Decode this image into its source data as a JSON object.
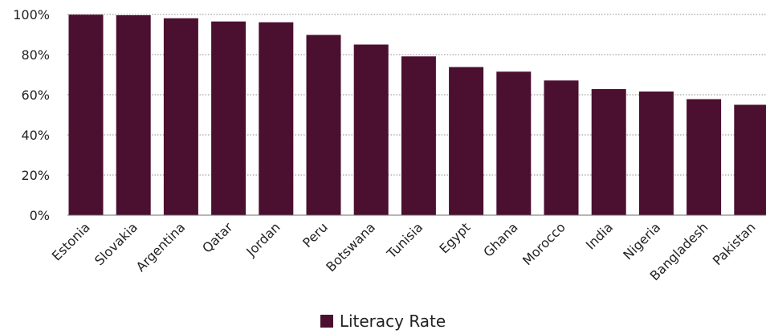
{
  "chart_data": {
    "type": "bar",
    "categories": [
      "Estonia",
      "Slovakia",
      "Argentina",
      "Qatar",
      "Jordan",
      "Peru",
      "Botswana",
      "Tunisia",
      "Egypt",
      "Ghana",
      "Morocco",
      "India",
      "Nigeria",
      "Bangladesh",
      "Pakistan"
    ],
    "series": [
      {
        "name": "Literacy Rate",
        "values": [
          99.9,
          99.6,
          98.1,
          96.5,
          96.1,
          89.8,
          85.0,
          79.1,
          73.8,
          71.5,
          67.1,
          62.8,
          61.6,
          57.8,
          55.0
        ]
      }
    ],
    "ylim": [
      0,
      100
    ],
    "yticks": [
      "0%",
      "20%",
      "40%",
      "60%",
      "80%",
      "100%"
    ],
    "ytick_values": [
      0,
      20,
      40,
      60,
      80,
      100
    ],
    "grid": true,
    "legend_position": "bottom",
    "colors": {
      "bar": "#4b0f30",
      "grid": "#8c8c8c",
      "axis": "#6e6e6e"
    }
  }
}
